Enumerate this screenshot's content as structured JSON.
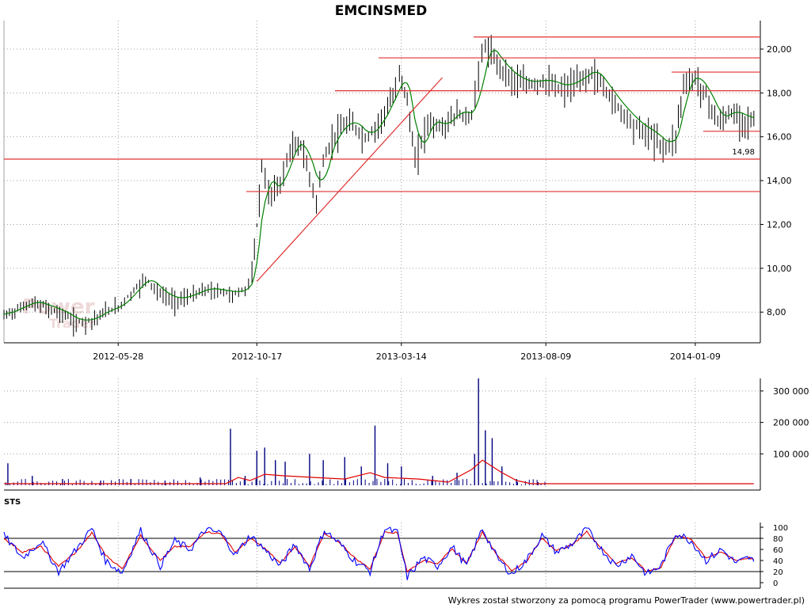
{
  "title": "EMCINSMED",
  "watermark": {
    "line1": "Power",
    "line2": "Trader"
  },
  "footer": "Wykres został stworzony za pomocą programu PowerTrader (www.powertrader.pl)",
  "colors": {
    "price": "#000000",
    "ma": "#008000",
    "levels": "#e03030",
    "level_label": "#e00000",
    "volume": "#000080",
    "volume_ma": "#e00000",
    "sts_k": "#0000ff",
    "sts_d": "#e00000",
    "grid": "#a0a0a0"
  },
  "chart_data": [
    {
      "type": "line",
      "name": "price",
      "x_ticks": [
        "2012-05-28",
        "2012-10-17",
        "2013-03-14",
        "2013-08-09",
        "2014-01-09"
      ],
      "x_range": [
        "2012-02-01",
        "2014-03-15"
      ],
      "y_ticks": [
        "8,00",
        "10,00",
        "12,00",
        "14,00",
        "16,00",
        "18,00",
        "20,00"
      ],
      "ylim": [
        6.6,
        21.3
      ],
      "close": [
        [
          "2012-02-01",
          7.9
        ],
        [
          "2012-02-15",
          8.2
        ],
        [
          "2012-03-01",
          8.5
        ],
        [
          "2012-03-15",
          8.3
        ],
        [
          "2012-04-01",
          8.0
        ],
        [
          "2012-04-15",
          7.6
        ],
        [
          "2012-05-01",
          7.7
        ],
        [
          "2012-05-15",
          8.1
        ],
        [
          "2012-05-28",
          8.3
        ],
        [
          "2012-06-10",
          8.9
        ],
        [
          "2012-06-25",
          9.6
        ],
        [
          "2012-07-10",
          8.9
        ],
        [
          "2012-07-25",
          8.6
        ],
        [
          "2012-08-10",
          8.8
        ],
        [
          "2012-08-25",
          9.1
        ],
        [
          "2012-09-10",
          9.0
        ],
        [
          "2012-09-25",
          8.9
        ],
        [
          "2012-10-05",
          9.1
        ],
        [
          "2012-10-12",
          9.8
        ],
        [
          "2012-10-17",
          12.0
        ],
        [
          "2012-10-22",
          14.8
        ],
        [
          "2012-10-29",
          13.5
        ],
        [
          "2012-11-10",
          14.0
        ],
        [
          "2012-11-20",
          15.5
        ],
        [
          "2012-12-01",
          15.8
        ],
        [
          "2012-12-10",
          14.3
        ],
        [
          "2012-12-17",
          13.2
        ],
        [
          "2012-12-24",
          15.0
        ],
        [
          "2013-01-05",
          16.2
        ],
        [
          "2013-01-20",
          16.8
        ],
        [
          "2013-02-05",
          16.0
        ],
        [
          "2013-02-15",
          16.5
        ],
        [
          "2013-02-28",
          17.5
        ],
        [
          "2013-03-08",
          18.2
        ],
        [
          "2013-03-12",
          19.2
        ],
        [
          "2013-03-20",
          17.8
        ],
        [
          "2013-03-28",
          15.0
        ],
        [
          "2013-04-10",
          16.8
        ],
        [
          "2013-04-25",
          16.5
        ],
        [
          "2013-05-10",
          17.2
        ],
        [
          "2013-05-25",
          17.0
        ],
        [
          "2013-06-01",
          19.2
        ],
        [
          "2013-06-08",
          20.3
        ],
        [
          "2013-06-20",
          19.5
        ],
        [
          "2013-07-05",
          18.8
        ],
        [
          "2013-07-20",
          18.5
        ],
        [
          "2013-08-09",
          18.6
        ],
        [
          "2013-08-25",
          18.3
        ],
        [
          "2013-09-10",
          18.6
        ],
        [
          "2013-09-25",
          19.1
        ],
        [
          "2013-10-10",
          18.2
        ],
        [
          "2013-10-25",
          17.3
        ],
        [
          "2013-11-10",
          16.6
        ],
        [
          "2013-11-25",
          16.2
        ],
        [
          "2013-12-10",
          15.6
        ],
        [
          "2013-12-20",
          16.2
        ],
        [
          "2013-12-28",
          18.5
        ],
        [
          "2014-01-09",
          18.8
        ],
        [
          "2014-01-20",
          18.0
        ],
        [
          "2014-02-01",
          16.8
        ],
        [
          "2014-02-15",
          17.2
        ],
        [
          "2014-03-01",
          16.9
        ],
        [
          "2014-03-10",
          16.8
        ]
      ],
      "levels": [
        20.55,
        19.6,
        18.95,
        18.1,
        14.98,
        13.5,
        16.25
      ],
      "trendline": [
        [
          "2012-10-17",
          9.4
        ],
        [
          "2013-04-25",
          18.7
        ]
      ],
      "level_label": "14,98"
    },
    {
      "type": "bar",
      "name": "volume",
      "y_ticks": [
        "100 000",
        "200 000",
        "300 000"
      ],
      "ylim": [
        0,
        340000
      ],
      "bars": [
        [
          "2012-02-05",
          70000
        ],
        [
          "2012-03-01",
          30000
        ],
        [
          "2012-04-01",
          20000
        ],
        [
          "2012-05-10",
          15000
        ],
        [
          "2012-06-10",
          20000
        ],
        [
          "2012-07-15",
          15000
        ],
        [
          "2012-08-20",
          25000
        ],
        [
          "2012-09-20",
          180000
        ],
        [
          "2012-10-05",
          30000
        ],
        [
          "2012-10-17",
          110000
        ],
        [
          "2012-10-25",
          120000
        ],
        [
          "2012-11-05",
          80000
        ],
        [
          "2012-11-15",
          75000
        ],
        [
          "2012-12-10",
          100000
        ],
        [
          "2012-12-24",
          80000
        ],
        [
          "2013-01-15",
          90000
        ],
        [
          "2013-02-01",
          60000
        ],
        [
          "2013-02-15",
          190000
        ],
        [
          "2013-02-28",
          70000
        ],
        [
          "2013-03-14",
          60000
        ],
        [
          "2013-04-15",
          30000
        ],
        [
          "2013-05-10",
          40000
        ],
        [
          "2013-05-28",
          100000
        ],
        [
          "2013-06-01",
          340000
        ],
        [
          "2013-06-08",
          175000
        ],
        [
          "2013-06-15",
          150000
        ],
        [
          "2013-06-25",
          60000
        ],
        [
          "2013-07-10",
          20000
        ],
        [
          "2013-08-01",
          10000
        ]
      ],
      "ma": [
        [
          "2012-02-01",
          5000
        ],
        [
          "2012-09-15",
          5000
        ],
        [
          "2012-09-28",
          25000
        ],
        [
          "2012-10-10",
          15000
        ],
        [
          "2012-10-25",
          35000
        ],
        [
          "2012-11-15",
          30000
        ],
        [
          "2012-12-15",
          25000
        ],
        [
          "2013-01-15",
          20000
        ],
        [
          "2013-02-10",
          40000
        ],
        [
          "2013-02-25",
          25000
        ],
        [
          "2013-04-01",
          20000
        ],
        [
          "2013-05-01",
          10000
        ],
        [
          "2013-05-25",
          50000
        ],
        [
          "2013-06-05",
          80000
        ],
        [
          "2013-06-25",
          40000
        ],
        [
          "2013-07-10",
          15000
        ],
        [
          "2013-07-25",
          5000
        ],
        [
          "2014-03-10",
          5000
        ]
      ]
    },
    {
      "type": "line",
      "name": "STS",
      "label": "STS",
      "y_ticks": [
        "0",
        "20",
        "40",
        "60",
        "80",
        "100"
      ],
      "ylim": [
        0,
        100
      ],
      "hlines": [
        20,
        80
      ],
      "k": [
        [
          "2012-02-01",
          85
        ],
        [
          "2012-02-20",
          45
        ],
        [
          "2012-03-10",
          75
        ],
        [
          "2012-03-28",
          20
        ],
        [
          "2012-04-15",
          60
        ],
        [
          "2012-05-01",
          98
        ],
        [
          "2012-05-15",
          40
        ],
        [
          "2012-06-01",
          18
        ],
        [
          "2012-06-20",
          95
        ],
        [
          "2012-07-10",
          30
        ],
        [
          "2012-07-25",
          75
        ],
        [
          "2012-08-10",
          60
        ],
        [
          "2012-08-25",
          95
        ],
        [
          "2012-09-10",
          90
        ],
        [
          "2012-09-25",
          50
        ],
        [
          "2012-10-10",
          85
        ],
        [
          "2012-10-25",
          60
        ],
        [
          "2012-11-10",
          30
        ],
        [
          "2012-11-25",
          70
        ],
        [
          "2012-12-10",
          25
        ],
        [
          "2012-12-25",
          95
        ],
        [
          "2013-01-10",
          70
        ],
        [
          "2013-01-25",
          40
        ],
        [
          "2013-02-10",
          20
        ],
        [
          "2013-02-25",
          98
        ],
        [
          "2013-03-10",
          90
        ],
        [
          "2013-03-20",
          10
        ],
        [
          "2013-04-05",
          45
        ],
        [
          "2013-04-20",
          30
        ],
        [
          "2013-05-05",
          65
        ],
        [
          "2013-05-20",
          30
        ],
        [
          "2013-06-05",
          98
        ],
        [
          "2013-06-20",
          45
        ],
        [
          "2013-07-05",
          15
        ],
        [
          "2013-07-20",
          40
        ],
        [
          "2013-08-05",
          85
        ],
        [
          "2013-08-20",
          55
        ],
        [
          "2013-09-05",
          70
        ],
        [
          "2013-09-20",
          97
        ],
        [
          "2013-10-05",
          60
        ],
        [
          "2013-10-20",
          30
        ],
        [
          "2013-11-05",
          50
        ],
        [
          "2013-11-20",
          15
        ],
        [
          "2013-12-05",
          30
        ],
        [
          "2013-12-20",
          90
        ],
        [
          "2014-01-05",
          75
        ],
        [
          "2014-01-20",
          40
        ],
        [
          "2014-02-05",
          60
        ],
        [
          "2014-02-20",
          35
        ],
        [
          "2014-03-05",
          45
        ],
        [
          "2014-03-10",
          38
        ]
      ],
      "d": [
        [
          "2012-02-01",
          80
        ],
        [
          "2012-02-20",
          55
        ],
        [
          "2012-03-10",
          65
        ],
        [
          "2012-03-28",
          30
        ],
        [
          "2012-04-15",
          55
        ],
        [
          "2012-05-01",
          90
        ],
        [
          "2012-05-15",
          50
        ],
        [
          "2012-06-01",
          25
        ],
        [
          "2012-06-20",
          85
        ],
        [
          "2012-07-10",
          40
        ],
        [
          "2012-07-25",
          65
        ],
        [
          "2012-08-10",
          65
        ],
        [
          "2012-08-25",
          92
        ],
        [
          "2012-09-10",
          88
        ],
        [
          "2012-09-25",
          55
        ],
        [
          "2012-10-10",
          80
        ],
        [
          "2012-10-25",
          62
        ],
        [
          "2012-11-10",
          35
        ],
        [
          "2012-11-25",
          65
        ],
        [
          "2012-12-10",
          30
        ],
        [
          "2012-12-25",
          88
        ],
        [
          "2013-01-10",
          72
        ],
        [
          "2013-01-25",
          45
        ],
        [
          "2013-02-10",
          25
        ],
        [
          "2013-02-25",
          92
        ],
        [
          "2013-03-10",
          90
        ],
        [
          "2013-03-20",
          20
        ],
        [
          "2013-04-05",
          40
        ],
        [
          "2013-04-20",
          35
        ],
        [
          "2013-05-05",
          60
        ],
        [
          "2013-05-20",
          35
        ],
        [
          "2013-06-05",
          92
        ],
        [
          "2013-06-20",
          50
        ],
        [
          "2013-07-05",
          22
        ],
        [
          "2013-07-20",
          38
        ],
        [
          "2013-08-05",
          80
        ],
        [
          "2013-08-20",
          58
        ],
        [
          "2013-09-05",
          68
        ],
        [
          "2013-09-20",
          92
        ],
        [
          "2013-10-05",
          62
        ],
        [
          "2013-10-20",
          35
        ],
        [
          "2013-11-05",
          45
        ],
        [
          "2013-11-20",
          20
        ],
        [
          "2013-12-05",
          28
        ],
        [
          "2013-12-20",
          85
        ],
        [
          "2014-01-05",
          78
        ],
        [
          "2014-01-20",
          45
        ],
        [
          "2014-02-05",
          55
        ],
        [
          "2014-02-20",
          40
        ],
        [
          "2014-03-05",
          45
        ],
        [
          "2014-03-10",
          42
        ]
      ]
    }
  ]
}
